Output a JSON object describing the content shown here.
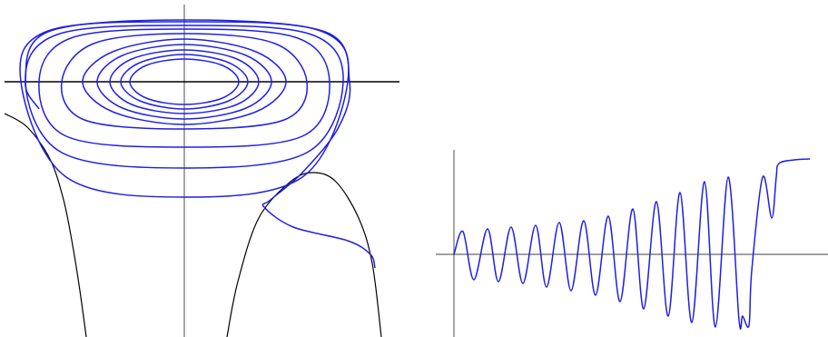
{
  "chart_data": [
    {
      "type": "line",
      "xlim": [
        -1.98,
        2.37
      ],
      "ylim": [
        -2.81,
        0.85
      ],
      "series": [
        {
          "color": "#000000",
          "x": [
            -1.98,
            -1.73,
            -1.48,
            -1.33,
            -1.23,
            -1.15,
            -1.08
          ],
          "values": [
            -0.35,
            -0.5,
            -0.85,
            -1.3,
            -1.8,
            -2.3,
            -2.81
          ]
        },
        {
          "color": "#000000",
          "x": [
            0.47,
            0.59,
            0.82,
            1.17,
            1.42,
            1.67,
            1.92,
            2.07,
            2.17
          ],
          "values": [
            -2.81,
            -2.2,
            -1.5,
            -1.1,
            -1.0,
            -1.1,
            -1.5,
            -2.0,
            -2.81
          ]
        },
        {
          "color": "#1f1fe6",
          "x": [
            0.6,
            0.42,
            0,
            -0.42,
            -0.6,
            -0.42,
            0,
            0.42,
            0.6
          ],
          "values": [
            0,
            0.18,
            0.25,
            0.18,
            0,
            -0.18,
            -0.25,
            -0.18,
            0
          ]
        },
        {
          "color": "#1f1fe6",
          "x": [
            0.7,
            0.49,
            0,
            -0.49,
            -0.7,
            -0.49,
            0,
            0.49,
            0.7
          ],
          "values": [
            0,
            0.21,
            0.3,
            0.21,
            0,
            -0.21,
            -0.3,
            -0.21,
            0
          ]
        },
        {
          "color": "#1f1fe6",
          "x": [
            0.82,
            0.58,
            0,
            -0.58,
            -0.82,
            -0.58,
            0,
            0.58,
            0.82
          ],
          "values": [
            0,
            0.25,
            0.35,
            0.25,
            0,
            -0.25,
            -0.35,
            -0.25,
            0
          ]
        },
        {
          "color": "#1f1fe6",
          "x": [
            0.96,
            0.68,
            0,
            -0.68,
            -0.96,
            -0.68,
            0,
            0.68,
            0.96
          ],
          "values": [
            0,
            0.29,
            0.41,
            0.29,
            0,
            -0.29,
            -0.41,
            -0.29,
            0
          ]
        },
        {
          "color": "#1f1fe6",
          "x": [
            1.12,
            0.79,
            0,
            -0.79,
            -1.12,
            -0.79,
            0,
            0.79,
            1.12
          ],
          "values": [
            0,
            0.33,
            0.47,
            0.33,
            0,
            -0.33,
            -0.47,
            -0.33,
            0
          ]
        },
        {
          "color": "#1f1fe6",
          "x": [
            1.35,
            1.0,
            0,
            -1.0,
            -1.35,
            -1.1,
            0,
            1.1,
            1.35
          ],
          "values": [
            0,
            0.42,
            0.53,
            0.42,
            0,
            -0.42,
            -0.52,
            -0.42,
            0
          ]
        },
        {
          "color": "#1f1fe6",
          "x": [
            1.6,
            1.25,
            0,
            -1.25,
            -1.6,
            -1.3,
            0,
            1.3,
            1.6
          ],
          "values": [
            0,
            0.48,
            0.58,
            0.48,
            0,
            -0.6,
            -0.72,
            -0.6,
            0
          ]
        },
        {
          "color": "#1f1fe6",
          "x": [
            1.75,
            1.4,
            0,
            -1.4,
            -1.75,
            -1.35,
            0,
            1.35,
            1.75
          ],
          "values": [
            0,
            0.52,
            0.62,
            0.52,
            0,
            -0.78,
            -0.95,
            -0.78,
            0
          ]
        },
        {
          "color": "#1f1fe6",
          "x": [
            1.8,
            1.5,
            0,
            -1.5,
            -1.8,
            -1.3,
            0,
            1.3,
            1.8
          ],
          "values": [
            0,
            0.56,
            0.66,
            0.56,
            0,
            -1.05,
            -1.27,
            -1.05,
            0
          ]
        },
        {
          "color": "#1f1fe6",
          "x": [
            -1.6,
            -1.75,
            -1.5,
            0,
            1.55,
            1.82,
            1.7,
            1.3,
            0.95,
            0.88,
            1.2,
            1.8,
            2.05,
            2.1
          ],
          "values": [
            -0.3,
            0,
            0.55,
            0.68,
            0.55,
            0,
            -0.5,
            -1.0,
            -1.3,
            -1.38,
            -1.6,
            -1.75,
            -1.9,
            -2.05
          ]
        }
      ]
    },
    {
      "type": "line",
      "xlim": [
        -0.2,
        4.12
      ],
      "ylim": [
        -0.91,
        1.15
      ],
      "series": [
        {
          "color": "#1f1fe6",
          "x": [
            0,
            0.1,
            0.22,
            0.37,
            0.49,
            0.63,
            0.76,
            0.9,
            1.02,
            1.16,
            1.29,
            1.43,
            1.56,
            1.7,
            1.83,
            1.97,
            2.09,
            2.23,
            2.36,
            2.49,
            2.62,
            2.76,
            2.88,
            3.02,
            3.14,
            3.18,
            3.25,
            3.28,
            3.4,
            3.5,
            3.55,
            3.58,
            3.75,
            3.92
          ],
          "values": [
            0,
            0.25,
            -0.28,
            0.28,
            -0.3,
            0.3,
            -0.32,
            0.32,
            -0.36,
            0.35,
            -0.4,
            0.37,
            -0.45,
            0.42,
            -0.52,
            0.5,
            -0.6,
            0.58,
            -0.68,
            0.68,
            -0.75,
            0.8,
            -0.8,
            0.85,
            -0.72,
            -0.68,
            -0.78,
            -0.18,
            0.85,
            0.4,
            0.85,
            1.0,
            1.04,
            1.05
          ]
        }
      ]
    }
  ]
}
